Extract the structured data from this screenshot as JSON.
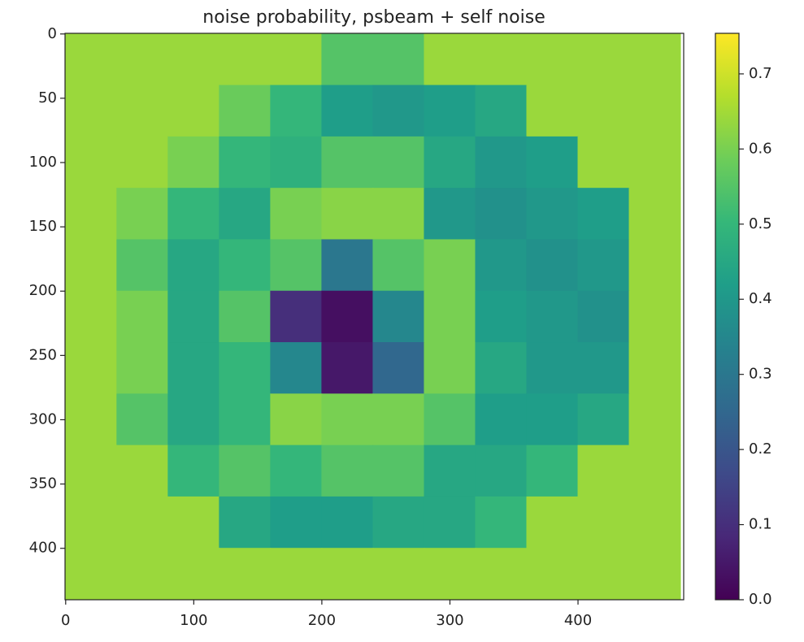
{
  "chart_data": {
    "type": "heatmap",
    "title": "noise probability, psbeam + self noise",
    "colormap": "viridis",
    "x": [
      20,
      60,
      100,
      140,
      180,
      220,
      260,
      300,
      340,
      380,
      420,
      460
    ],
    "y": [
      20,
      60,
      100,
      140,
      180,
      220,
      260,
      300,
      340,
      380,
      420
    ],
    "values": [
      [
        0.64,
        0.64,
        0.64,
        0.64,
        0.64,
        0.55,
        0.55,
        0.64,
        0.64,
        0.64,
        0.64,
        0.64
      ],
      [
        0.64,
        0.64,
        0.64,
        0.58,
        0.5,
        0.42,
        0.4,
        0.42,
        0.45,
        0.64,
        0.64,
        0.64
      ],
      [
        0.64,
        0.64,
        0.6,
        0.5,
        0.48,
        0.55,
        0.55,
        0.45,
        0.4,
        0.42,
        0.64,
        0.64
      ],
      [
        0.64,
        0.6,
        0.5,
        0.45,
        0.6,
        0.62,
        0.62,
        0.4,
        0.38,
        0.4,
        0.42,
        0.64
      ],
      [
        0.64,
        0.55,
        0.45,
        0.5,
        0.55,
        0.3,
        0.55,
        0.6,
        0.4,
        0.38,
        0.4,
        0.64
      ],
      [
        0.64,
        0.6,
        0.45,
        0.55,
        0.1,
        0.03,
        0.35,
        0.6,
        0.42,
        0.4,
        0.38,
        0.64
      ],
      [
        0.64,
        0.6,
        0.45,
        0.5,
        0.35,
        0.05,
        0.25,
        0.6,
        0.45,
        0.4,
        0.4,
        0.64
      ],
      [
        0.64,
        0.55,
        0.45,
        0.5,
        0.62,
        0.6,
        0.6,
        0.55,
        0.42,
        0.42,
        0.45,
        0.64
      ],
      [
        0.64,
        0.64,
        0.5,
        0.55,
        0.5,
        0.55,
        0.55,
        0.45,
        0.45,
        0.5,
        0.64,
        0.64
      ],
      [
        0.64,
        0.64,
        0.64,
        0.45,
        0.42,
        0.42,
        0.45,
        0.45,
        0.5,
        0.64,
        0.64,
        0.64
      ],
      [
        0.64,
        0.64,
        0.64,
        0.64,
        0.64,
        0.64,
        0.64,
        0.64,
        0.64,
        0.64,
        0.64,
        0.64
      ]
    ],
    "xlim": [
      -0.5,
      482.5
    ],
    "ylim": [
      440,
      -0.5
    ],
    "xticks": [
      0,
      100,
      200,
      300,
      400
    ],
    "yticks": [
      0,
      50,
      100,
      150,
      200,
      250,
      300,
      350,
      400
    ],
    "clim": [
      0,
      0.754
    ],
    "cticks": [
      0.0,
      0.1,
      0.2,
      0.3,
      0.4,
      0.5,
      0.6,
      0.7
    ]
  }
}
